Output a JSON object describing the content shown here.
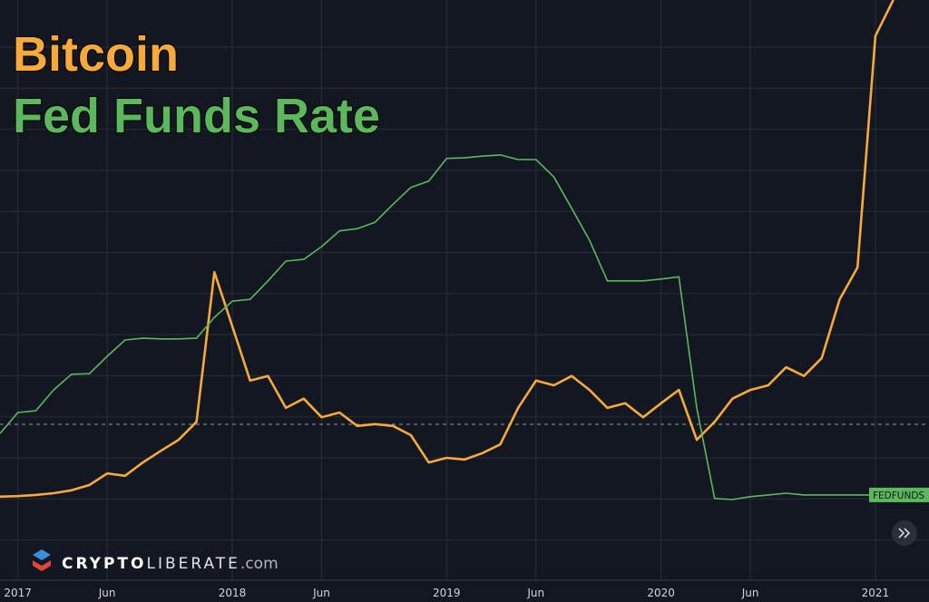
{
  "chart_data": {
    "type": "line",
    "title_lines": [
      "Bitcoin",
      "Fed Funds Rate"
    ],
    "x": [
      "2016-12",
      "2017-01",
      "2017-02",
      "2017-03",
      "2017-04",
      "2017-05",
      "2017-06",
      "2017-07",
      "2017-08",
      "2017-09",
      "2017-10",
      "2017-11",
      "2017-12",
      "2018-01",
      "2018-02",
      "2018-03",
      "2018-04",
      "2018-05",
      "2018-06",
      "2018-07",
      "2018-08",
      "2018-09",
      "2018-10",
      "2018-11",
      "2018-12",
      "2019-01",
      "2019-02",
      "2019-03",
      "2019-04",
      "2019-05",
      "2019-06",
      "2019-07",
      "2019-08",
      "2019-09",
      "2019-10",
      "2019-11",
      "2019-12",
      "2020-01",
      "2020-02",
      "2020-03",
      "2020-04",
      "2020-05",
      "2020-06",
      "2020-07",
      "2020-08",
      "2020-09",
      "2020-10",
      "2020-11",
      "2020-12",
      "2021-01",
      "2021-02"
    ],
    "series": [
      {
        "name": "Bitcoin",
        "color": "#f7a93b",
        "values": [
          14.4,
          14.5,
          14.7,
          15.0,
          15.5,
          16.4,
          18.4,
          18.0,
          20.3,
          22.3,
          24.2,
          27.3,
          53.1,
          43.8,
          34.4,
          35.2,
          29.7,
          31.3,
          28.1,
          28.9,
          26.6,
          26.9,
          26.6,
          25.0,
          20.3,
          21.1,
          20.8,
          21.9,
          23.4,
          29.7,
          34.4,
          33.6,
          35.2,
          32.8,
          29.7,
          30.5,
          28.1,
          30.5,
          32.8,
          24.2,
          27.3,
          31.3,
          32.8,
          33.6,
          36.7,
          35.2,
          38.3,
          48.4,
          53.9,
          93.8,
          100
        ]
      },
      {
        "name": "Fed Funds Rate",
        "color": "#5cb85c",
        "label": "FEDFUNDS",
        "values": [
          25.3,
          28.9,
          29.2,
          32.8,
          35.5,
          35.6,
          38.6,
          41.4,
          41.7,
          41.6,
          41.6,
          41.7,
          45.3,
          48.1,
          48.4,
          51.6,
          55.0,
          55.3,
          57.5,
          60.2,
          60.6,
          61.7,
          64.8,
          67.7,
          68.8,
          72.7,
          72.8,
          73.1,
          73.3,
          72.5,
          72.5,
          69.5,
          64.1,
          58.6,
          51.6,
          51.6,
          51.6,
          51.9,
          52.3,
          29.7,
          14.1,
          13.9,
          14.4,
          14.7,
          15.0,
          14.7,
          14.7,
          14.7,
          14.7,
          14.7,
          14.7
        ]
      }
    ],
    "xlim": [
      "2016-12",
      "2021-04"
    ],
    "xticks": [
      {
        "value": "2017-01",
        "label": "2017"
      },
      {
        "value": "2017-06",
        "label": "Jun"
      },
      {
        "value": "2018-01",
        "label": "2018"
      },
      {
        "value": "2018-06",
        "label": "Jun"
      },
      {
        "value": "2019-01",
        "label": "2019"
      },
      {
        "value": "2019-06",
        "label": "Jun"
      },
      {
        "value": "2020-01",
        "label": "2020"
      },
      {
        "value": "2020-06",
        "label": "Jun"
      },
      {
        "value": "2021-01",
        "label": "2021"
      }
    ],
    "ylim": [
      0,
      100
    ],
    "grid": true
  },
  "watermark": {
    "brand_bold": "CRYPTO",
    "brand_light": "LIBERATE",
    "suffix": ".com"
  }
}
